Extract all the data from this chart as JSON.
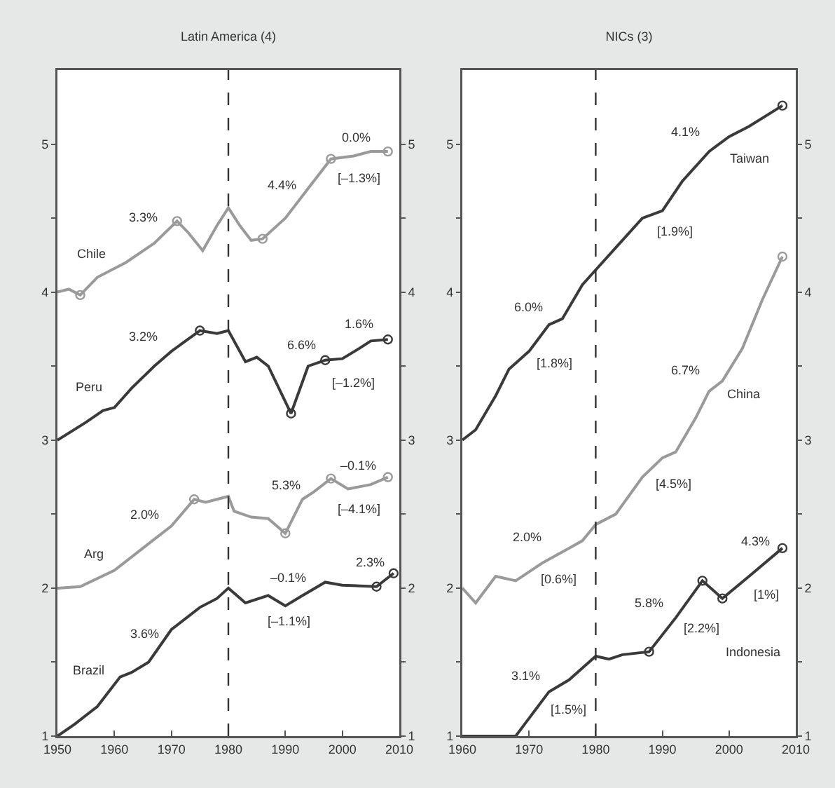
{
  "chart_data": [
    {
      "type": "line",
      "title": "Latin America (4)",
      "xlim": [
        1950,
        2010
      ],
      "xticks": [
        1950,
        1960,
        1970,
        1980,
        1990,
        2000,
        2010
      ],
      "ylim": [
        1,
        5.5
      ],
      "yticks": [
        1,
        {
          "value": 1.5,
          "label": null
        },
        2,
        {
          "value": 2.5,
          "label": null
        },
        3,
        {
          "value": 3.5,
          "label": null
        },
        4,
        {
          "value": 4.5,
          "label": null
        },
        5
      ],
      "y2lim": [
        1,
        5.5
      ],
      "y2ticks": [
        1,
        {
          "value": 1.5,
          "label": null
        },
        2,
        {
          "value": 2.5,
          "label": null
        },
        3,
        {
          "value": 3.5,
          "label": null
        },
        4,
        {
          "value": 4.5,
          "label": null
        },
        5
      ],
      "ref_lines": [
        {
          "axis": "x",
          "value": 1980,
          "color": "#333333",
          "line_style": "dashed"
        }
      ],
      "series": [
        {
          "type": "line",
          "color": "#9a9a9a",
          "x": [
            1950,
            1952,
            1954,
            1957,
            1962,
            1967,
            1971,
            1973,
            1975.5,
            1978,
            1980,
            1982,
            1984,
            1986,
            1990,
            1995,
            1998,
            2002,
            2005,
            2008
          ],
          "values": [
            4.0,
            4.02,
            3.98,
            4.1,
            4.2,
            4.33,
            4.48,
            4.4,
            4.28,
            4.45,
            4.57,
            4.45,
            4.35,
            4.36,
            4.5,
            4.75,
            4.9,
            4.92,
            4.95,
            4.95
          ]
        },
        {
          "type": "scatter",
          "marker": "circle",
          "color": "#9a9a9a",
          "x": [
            1954,
            1971,
            1986,
            1998,
            2008
          ],
          "values": [
            3.98,
            4.48,
            4.36,
            4.9,
            4.95
          ]
        },
        {
          "type": "line",
          "color": "#3a3a3a",
          "x": [
            1950,
            1955,
            1958,
            1960,
            1963,
            1967,
            1970,
            1975,
            1978,
            1980,
            1983,
            1985,
            1987,
            1991,
            1994,
            1997,
            2000,
            2003,
            2005,
            2008
          ],
          "values": [
            3.0,
            3.12,
            3.2,
            3.22,
            3.35,
            3.5,
            3.6,
            3.74,
            3.72,
            3.74,
            3.53,
            3.56,
            3.5,
            3.18,
            3.5,
            3.54,
            3.55,
            3.62,
            3.67,
            3.68
          ]
        },
        {
          "type": "scatter",
          "marker": "circle",
          "color": "#3a3a3a",
          "x": [
            1975,
            1991,
            1997,
            2008
          ],
          "values": [
            3.74,
            3.18,
            3.54,
            3.68
          ]
        },
        {
          "type": "line",
          "color": "#9a9a9a",
          "x": [
            1950,
            1954,
            1960,
            1965,
            1970,
            1974,
            1976,
            1980,
            1981,
            1984,
            1987,
            1990,
            1993,
            1995,
            1998,
            2001,
            2005,
            2008
          ],
          "values": [
            2.0,
            2.01,
            2.12,
            2.27,
            2.42,
            2.6,
            2.58,
            2.62,
            2.52,
            2.48,
            2.47,
            2.37,
            2.6,
            2.65,
            2.74,
            2.67,
            2.7,
            2.75
          ]
        },
        {
          "type": "scatter",
          "marker": "circle",
          "color": "#9a9a9a",
          "x": [
            1974,
            1990,
            1998,
            2008
          ],
          "values": [
            2.6,
            2.37,
            2.74,
            2.75
          ]
        },
        {
          "type": "line",
          "color": "#3a3a3a",
          "x": [
            1950,
            1953,
            1957,
            1961,
            1963,
            1966,
            1970,
            1975,
            1978,
            1980,
            1983,
            1987,
            1990,
            1993,
            1997,
            2000,
            2006,
            2009
          ],
          "values": [
            1.0,
            1.08,
            1.2,
            1.4,
            1.43,
            1.5,
            1.72,
            1.87,
            1.93,
            2.0,
            1.9,
            1.95,
            1.88,
            1.95,
            2.04,
            2.02,
            2.01,
            2.1
          ]
        },
        {
          "type": "scatter",
          "marker": "circle",
          "color": "#3a3a3a",
          "x": [
            2006,
            2009
          ],
          "values": [
            2.01,
            2.1
          ]
        }
      ],
      "annotations": [
        "Chile",
        "3.3%",
        "4.4%",
        "0.0%",
        "[–1.3%]",
        "Peru",
        "3.2%",
        "6.6%",
        "1.6%",
        "[–1.2%]",
        "Arg",
        "2.0%",
        "5.3%",
        "–0.1%",
        "[–4.1%]",
        "Brazil",
        "3.6%",
        "–0.1%",
        "2.3%",
        "[–1.1%]"
      ]
    },
    {
      "type": "line",
      "title": "NICs (3)",
      "xlim": [
        1960,
        2010
      ],
      "xticks": [
        1960,
        1970,
        1980,
        1990,
        2000,
        2010
      ],
      "ylim": [
        1,
        5.5
      ],
      "yticks": [
        1,
        {
          "value": 1.5,
          "label": null
        },
        2,
        {
          "value": 2.5,
          "label": null
        },
        3,
        {
          "value": 3.5,
          "label": null
        },
        4,
        {
          "value": 4.5,
          "label": null
        },
        5
      ],
      "y2lim": [
        1,
        5.5
      ],
      "y2ticks": [
        1,
        {
          "value": 1.5,
          "label": null
        },
        2,
        {
          "value": 2.5,
          "label": null
        },
        3,
        {
          "value": 3.5,
          "label": null
        },
        4,
        {
          "value": 4.5,
          "label": null
        },
        5
      ],
      "ref_lines": [
        {
          "axis": "x",
          "value": 1980,
          "color": "#333333",
          "line_style": "dashed"
        }
      ],
      "series": [
        {
          "type": "line",
          "color": "#3a3a3a",
          "x": [
            1960,
            1962,
            1965,
            1967,
            1970,
            1973,
            1975,
            1978,
            1980,
            1983,
            1987,
            1990,
            1993,
            1997,
            2000,
            2003,
            2008
          ],
          "values": [
            3.0,
            3.07,
            3.3,
            3.48,
            3.6,
            3.78,
            3.82,
            4.05,
            4.15,
            4.3,
            4.5,
            4.55,
            4.75,
            4.95,
            5.05,
            5.12,
            5.26
          ]
        },
        {
          "type": "scatter",
          "marker": "circle",
          "color": "#3a3a3a",
          "x": [
            2008
          ],
          "values": [
            5.26
          ]
        },
        {
          "type": "line",
          "color": "#9a9a9a",
          "x": [
            1960,
            1962,
            1965,
            1968,
            1972,
            1976,
            1978,
            1980,
            1983,
            1987,
            1990,
            1992,
            1995,
            1997,
            1999,
            2002,
            2005,
            2008
          ],
          "values": [
            2.0,
            1.9,
            2.08,
            2.05,
            2.17,
            2.27,
            2.32,
            2.43,
            2.5,
            2.75,
            2.88,
            2.92,
            3.15,
            3.33,
            3.4,
            3.62,
            3.95,
            4.24
          ]
        },
        {
          "type": "scatter",
          "marker": "circle",
          "color": "#9a9a9a",
          "x": [
            2008
          ],
          "values": [
            4.24
          ]
        },
        {
          "type": "line",
          "color": "#3a3a3a",
          "x": [
            1960,
            1968,
            1970,
            1973,
            1976,
            1980,
            1982,
            1984,
            1988,
            1992,
            1996,
            1999,
            2003,
            2008
          ],
          "values": [
            1.0,
            1.0,
            1.12,
            1.3,
            1.38,
            1.54,
            1.52,
            1.55,
            1.57,
            1.8,
            2.05,
            1.93,
            2.08,
            2.27
          ]
        },
        {
          "type": "scatter",
          "marker": "circle",
          "color": "#3a3a3a",
          "x": [
            1988,
            1996,
            1999,
            2008
          ],
          "values": [
            1.57,
            2.05,
            1.93,
            2.27
          ]
        }
      ],
      "annotations": [
        "4.1%",
        "Taiwan",
        "[1.9%]",
        "6.0%",
        "[1.8%]",
        "6.7%",
        "China",
        "[4.5%]",
        "2.0%",
        "[0.6%]",
        "4.3%",
        "[1%]",
        "5.8%",
        "[2.2%]",
        "Indonesia",
        "3.1%",
        "[1.5%]"
      ]
    }
  ]
}
